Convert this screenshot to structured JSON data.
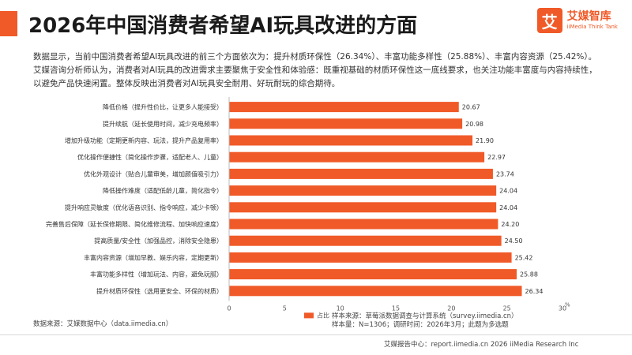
{
  "header": {
    "title": "2026年中国消费者希望AI玩具改进的方面"
  },
  "logo": {
    "mark": "艾",
    "name_cn": "艾媒智库",
    "name_en": "iiMedia Think Tank"
  },
  "summary": "数据显示，当前中国消费者希望AI玩具改进的前三个方面依次为：提升材质环保性（26.34%）、丰富功能多样性（25.88%）、丰富内容资源（25.42%）。艾媒咨询分析师认为，消费者对AI玩具的改进需求主要聚焦于安全性和体验感：既重视基础的材质环保性这一底线要求，也关注功能丰富度与内容持续性，以避免产品快速闲置。整体反映出消费者对AI玩具安全耐用、好玩耐玩的综合期待。",
  "chart_data": {
    "type": "bar",
    "orientation": "horizontal",
    "categories": [
      "降低价格（提升性价比，让更多人能接受）",
      "提升续航（延长使用时间，减少充电频率）",
      "增加升级功能（定期更新内容、玩法，提升产品复用率）",
      "优化操作便捷性（简化操作步骤，适配老人、儿童）",
      "优化外观设计（贴合儿童审美，增加颜值吸引力）",
      "降低操作难度（适配低龄儿童，简化指令）",
      "提升响应灵敏度（优化语音识别、指令响应，减少卡顿）",
      "完善售后保障（延长保修期限、简化维修流程、加快响应速度）",
      "提高质量/安全性（加强品控，消除安全隐患）",
      "丰富内容资源（增加早教、娱乐内容，定期更新）",
      "丰富功能多样性（增加玩法、内容，避免玩腻）",
      "提升材质环保性（选用更安全、环保的材质）"
    ],
    "values": [
      20.67,
      20.98,
      21.9,
      22.97,
      23.74,
      24.04,
      24.04,
      24.2,
      24.5,
      25.42,
      25.88,
      26.34
    ],
    "value_labels": [
      "20.67",
      "20.98",
      "21.90",
      "22.97",
      "23.74",
      "24.04",
      "24.04",
      "24.20",
      "24.50",
      "25.42",
      "25.88",
      "26.34"
    ],
    "xlim": [
      0,
      30
    ],
    "xticks": [
      "0",
      "5",
      "10",
      "15",
      "20",
      "25",
      "30"
    ],
    "x_unit": "%",
    "legend": "占比",
    "legend_position": "bottom",
    "bar_color": "#f05a28",
    "grid": false
  },
  "source": {
    "left": "数据来源：艾媒数据中心（data.iimedia.cn）",
    "right_line1": "样本来源：草莓派数据调查与计算系统（survey.iimedia.cn）",
    "right_line2": "样本量：N=1306；调研时间：2026年3月；此题为多选题"
  },
  "footer": "艾媒报告中心：report.iimedia.cn  2026 iiMedia Research Inc"
}
